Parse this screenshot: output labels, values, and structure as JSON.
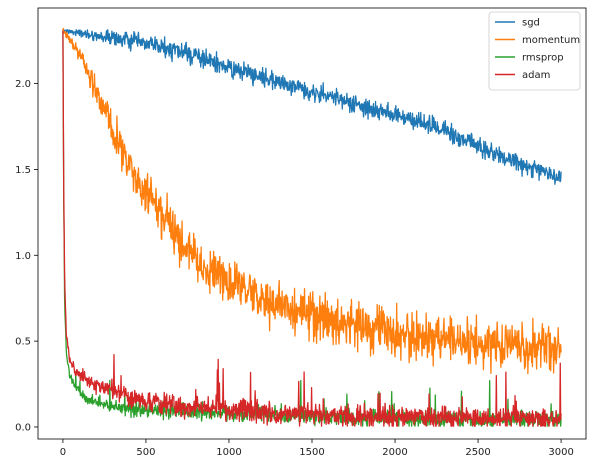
{
  "chart_data": {
    "type": "line",
    "title": "",
    "xlabel": "",
    "ylabel": "",
    "xlim": [
      -150,
      3150
    ],
    "ylim": [
      -0.07,
      2.44
    ],
    "x_ticks": [
      0,
      500,
      1000,
      1500,
      2000,
      2500,
      3000
    ],
    "y_ticks": [
      0.0,
      0.5,
      1.0,
      1.5,
      2.0
    ],
    "x_tick_labels": [
      "0",
      "500",
      "1000",
      "1500",
      "2000",
      "2500",
      "3000"
    ],
    "y_tick_labels": [
      "0.0",
      "0.5",
      "1.0",
      "1.5",
      "2.0"
    ],
    "grid": false,
    "legend_position": "top-right",
    "x_range": [
      0,
      3000
    ],
    "series": [
      {
        "name": "sgd",
        "color": "#1f77b4",
        "noise": [
          0.01,
          0.08
        ],
        "points": [
          [
            0,
            2.31
          ],
          [
            200,
            2.28
          ],
          [
            400,
            2.25
          ],
          [
            600,
            2.21
          ],
          [
            800,
            2.16
          ],
          [
            1000,
            2.09
          ],
          [
            1200,
            2.04
          ],
          [
            1400,
            1.98
          ],
          [
            1600,
            1.93
          ],
          [
            1800,
            1.86
          ],
          [
            2000,
            1.82
          ],
          [
            2200,
            1.76
          ],
          [
            2400,
            1.68
          ],
          [
            2600,
            1.59
          ],
          [
            2800,
            1.52
          ],
          [
            3000,
            1.45
          ]
        ]
      },
      {
        "name": "momentum",
        "color": "#ff7f0e",
        "noise": [
          0.02,
          0.2
        ],
        "points": [
          [
            0,
            2.31
          ],
          [
            100,
            2.18
          ],
          [
            200,
            1.95
          ],
          [
            300,
            1.72
          ],
          [
            400,
            1.52
          ],
          [
            500,
            1.35
          ],
          [
            600,
            1.22
          ],
          [
            700,
            1.08
          ],
          [
            800,
            0.98
          ],
          [
            900,
            0.9
          ],
          [
            1000,
            0.84
          ],
          [
            1200,
            0.74
          ],
          [
            1400,
            0.68
          ],
          [
            1600,
            0.62
          ],
          [
            1800,
            0.58
          ],
          [
            2000,
            0.55
          ],
          [
            2200,
            0.52
          ],
          [
            2400,
            0.5
          ],
          [
            2600,
            0.48
          ],
          [
            2800,
            0.46
          ],
          [
            3000,
            0.45
          ]
        ]
      },
      {
        "name": "rmsprop",
        "color": "#2ca02c",
        "noise": [
          0.03,
          0.07
        ],
        "points": [
          [
            0,
            2.3
          ],
          [
            5,
            1.3
          ],
          [
            10,
            0.75
          ],
          [
            20,
            0.45
          ],
          [
            40,
            0.3
          ],
          [
            80,
            0.22
          ],
          [
            150,
            0.16
          ],
          [
            300,
            0.12
          ],
          [
            500,
            0.1
          ],
          [
            800,
            0.09
          ],
          [
            1200,
            0.07
          ],
          [
            1600,
            0.06
          ],
          [
            2000,
            0.05
          ],
          [
            2500,
            0.04
          ],
          [
            3000,
            0.04
          ]
        ]
      },
      {
        "name": "adam",
        "color": "#d62728",
        "noise": [
          0.04,
          0.09
        ],
        "points": [
          [
            0,
            2.31
          ],
          [
            5,
            1.4
          ],
          [
            10,
            0.9
          ],
          [
            20,
            0.55
          ],
          [
            40,
            0.38
          ],
          [
            80,
            0.32
          ],
          [
            150,
            0.27
          ],
          [
            300,
            0.2
          ],
          [
            500,
            0.15
          ],
          [
            800,
            0.12
          ],
          [
            1200,
            0.09
          ],
          [
            1600,
            0.07
          ],
          [
            2000,
            0.06
          ],
          [
            2500,
            0.05
          ],
          [
            3000,
            0.05
          ]
        ]
      }
    ]
  }
}
